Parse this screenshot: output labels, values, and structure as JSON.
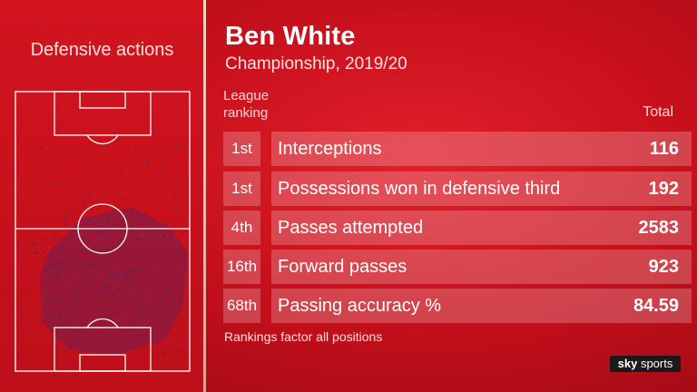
{
  "left_panel": {
    "title": "Defensive actions"
  },
  "header": {
    "player_name": "Ben White",
    "subtitle": "Championship, 2019/20",
    "rank_header_line1": "League",
    "rank_header_line2": "ranking",
    "total_header": "Total"
  },
  "stats": [
    {
      "rank": "1st",
      "label": "Interceptions",
      "value": "116"
    },
    {
      "rank": "1st",
      "label": "Possessions won in defensive third",
      "value": "192"
    },
    {
      "rank": "4th",
      "label": "Passes attempted",
      "value": "2583"
    },
    {
      "rank": "16th",
      "label": "Forward passes",
      "value": "923"
    },
    {
      "rank": "68th",
      "label": "Passing accuracy %",
      "value": "84.59"
    }
  ],
  "footnote": "Rankings factor all positions",
  "brand": {
    "logo_text_sky": "sky",
    "logo_text_sports": "sports"
  },
  "colors": {
    "background": "#c8101c",
    "heat_zone": "#8a1a40",
    "action_dot": "#3b2a6e",
    "pitch_lines": "#ffffff"
  }
}
